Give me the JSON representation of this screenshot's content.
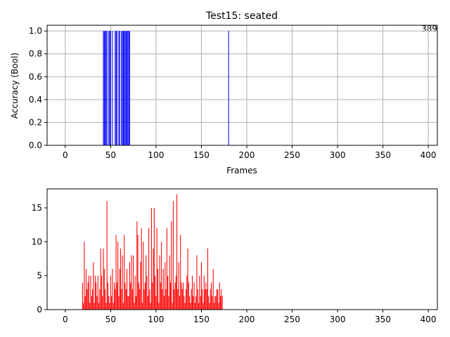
{
  "chart_data": [
    {
      "type": "bar",
      "title": "Test15: seated",
      "xlabel": "Frames",
      "ylabel": "Accuracy (Bool)",
      "corner_label": "389",
      "xlim": [
        -20,
        410
      ],
      "ylim": [
        0,
        1.05
      ],
      "grid": true,
      "color": "#0000ff",
      "xticks": [
        0,
        50,
        100,
        150,
        200,
        250,
        300,
        350,
        400
      ],
      "yticks": [
        0.0,
        0.2,
        0.4,
        0.6,
        0.8,
        1.0
      ],
      "xtick_labels": [
        "0",
        "50",
        "100",
        "150",
        "200",
        "250",
        "300",
        "350",
        "400"
      ],
      "ytick_labels": [
        "0.0",
        "0.2",
        "0.4",
        "0.6",
        "0.8",
        "1.0"
      ],
      "x": [
        42,
        43,
        44,
        45,
        46,
        48,
        49,
        50,
        52,
        55,
        56,
        57,
        59,
        60,
        62,
        63,
        64,
        65,
        66,
        67,
        68,
        69,
        70,
        71,
        180
      ],
      "values": [
        1,
        1,
        1,
        1,
        1,
        1,
        1,
        1,
        1,
        1,
        1,
        1,
        1,
        1,
        1,
        1,
        1,
        1,
        1,
        1,
        1,
        1,
        1,
        1,
        1
      ]
    },
    {
      "type": "bar",
      "title": "",
      "xlabel": "",
      "ylabel": "",
      "xlim": [
        -20,
        410
      ],
      "ylim": [
        0,
        17.8
      ],
      "grid": false,
      "color": "#ff0000",
      "xticks": [
        0,
        50,
        100,
        150,
        200,
        250,
        300,
        350,
        400
      ],
      "yticks": [
        0,
        5,
        10,
        15
      ],
      "xtick_labels": [
        "0",
        "50",
        "100",
        "150",
        "200",
        "250",
        "300",
        "350",
        "400"
      ],
      "ytick_labels": [
        "0",
        "5",
        "10",
        "15"
      ],
      "x_start": 19,
      "values": [
        4,
        1,
        10,
        2,
        6,
        3,
        4,
        5,
        1,
        5,
        2,
        3,
        7,
        1,
        5,
        4,
        2,
        5,
        1,
        3,
        9,
        5,
        2,
        9,
        6,
        3,
        1,
        16,
        4,
        2,
        1,
        5,
        2,
        6,
        1,
        4,
        3,
        11,
        4,
        10,
        2,
        6,
        9,
        3,
        8,
        1,
        11,
        4,
        3,
        6,
        2,
        2,
        7,
        4,
        8,
        3,
        8,
        1,
        5,
        2,
        13,
        11,
        4,
        3,
        7,
        12,
        1,
        10,
        3,
        4,
        8,
        5,
        2,
        12,
        3,
        1,
        15,
        4,
        9,
        15,
        5,
        2,
        12,
        6,
        1,
        8,
        4,
        10,
        3,
        6,
        2,
        7,
        3,
        12,
        5,
        2,
        8,
        4,
        13,
        1,
        16,
        3,
        4,
        5,
        17,
        3,
        7,
        2,
        11,
        4,
        3,
        4,
        2,
        1,
        3,
        5,
        9,
        4,
        2,
        1,
        3,
        5,
        2,
        4,
        1,
        2,
        8,
        3,
        1,
        5,
        2,
        7,
        3,
        1,
        5,
        3,
        4,
        3,
        9,
        2,
        1,
        3,
        4,
        2,
        6,
        1,
        2,
        2,
        3,
        3,
        1,
        4,
        2,
        3,
        2
      ]
    }
  ]
}
